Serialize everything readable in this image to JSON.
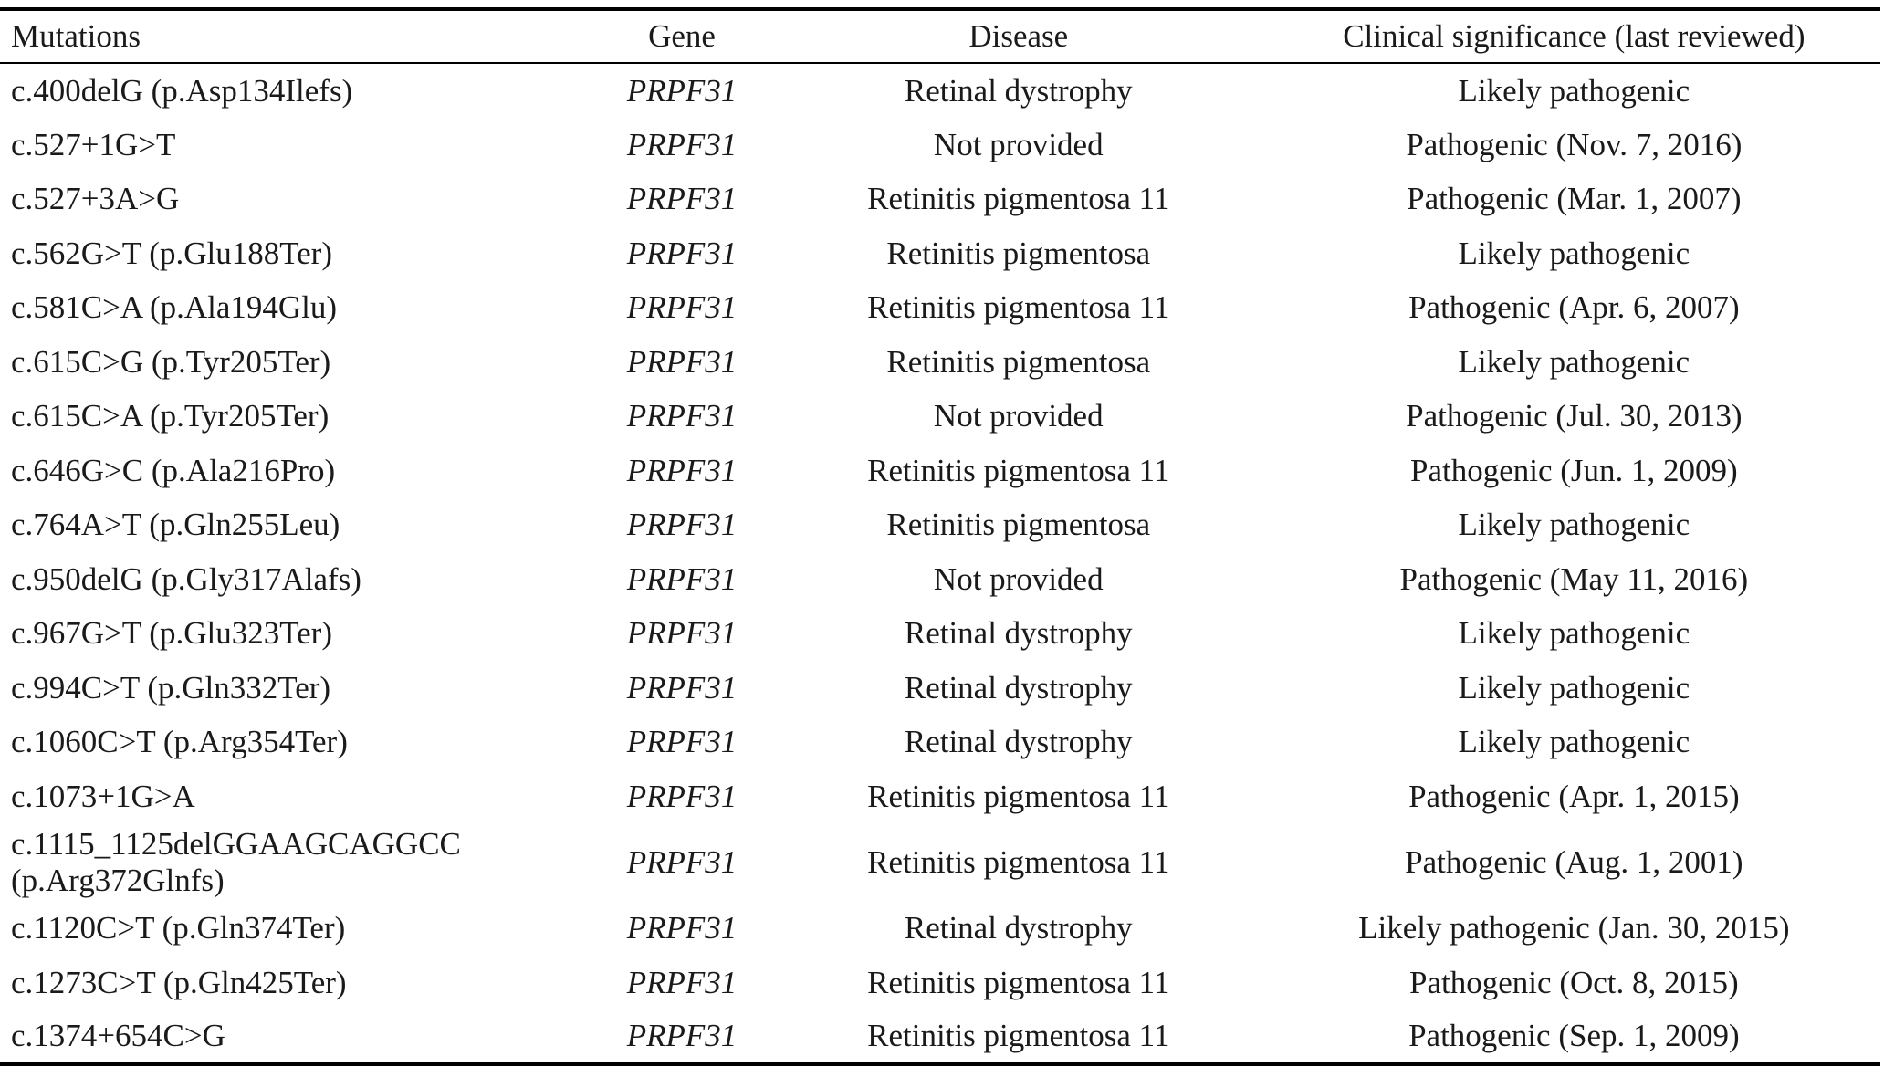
{
  "table": {
    "headers": {
      "mutations": "Mutations",
      "gene": "Gene",
      "disease": "Disease",
      "significance": "Clinical significance (last reviewed)"
    },
    "rows": [
      {
        "mutation": "c.400delG (p.Asp134Ilefs)",
        "gene": "PRPF31",
        "disease": "Retinal dystrophy",
        "significance": "Likely pathogenic"
      },
      {
        "mutation": "c.527+1G>T",
        "gene": "PRPF31",
        "disease": "Not provided",
        "significance": "Pathogenic (Nov. 7, 2016)"
      },
      {
        "mutation": "c.527+3A>G",
        "gene": "PRPF31",
        "disease": "Retinitis pigmentosa 11",
        "significance": "Pathogenic (Mar. 1, 2007)"
      },
      {
        "mutation": "c.562G>T (p.Glu188Ter)",
        "gene": "PRPF31",
        "disease": "Retinitis pigmentosa",
        "significance": "Likely pathogenic"
      },
      {
        "mutation": "c.581C>A (p.Ala194Glu)",
        "gene": "PRPF31",
        "disease": "Retinitis pigmentosa 11",
        "significance": "Pathogenic (Apr. 6, 2007)"
      },
      {
        "mutation": "c.615C>G (p.Tyr205Ter)",
        "gene": "PRPF31",
        "disease": "Retinitis pigmentosa",
        "significance": "Likely pathogenic"
      },
      {
        "mutation": "c.615C>A (p.Tyr205Ter)",
        "gene": "PRPF31",
        "disease": "Not provided",
        "significance": "Pathogenic (Jul. 30, 2013)"
      },
      {
        "mutation": "c.646G>C (p.Ala216Pro)",
        "gene": "PRPF31",
        "disease": "Retinitis pigmentosa 11",
        "significance": "Pathogenic (Jun. 1, 2009)"
      },
      {
        "mutation": "c.764A>T (p.Gln255Leu)",
        "gene": "PRPF31",
        "disease": "Retinitis pigmentosa",
        "significance": "Likely pathogenic"
      },
      {
        "mutation": "c.950delG (p.Gly317Alafs)",
        "gene": "PRPF31",
        "disease": "Not provided",
        "significance": "Pathogenic (May 11, 2016)"
      },
      {
        "mutation": "c.967G>T (p.Glu323Ter)",
        "gene": "PRPF31",
        "disease": "Retinal dystrophy",
        "significance": "Likely pathogenic"
      },
      {
        "mutation": "c.994C>T (p.Gln332Ter)",
        "gene": "PRPF31",
        "disease": "Retinal dystrophy",
        "significance": "Likely pathogenic"
      },
      {
        "mutation": "c.1060C>T (p.Arg354Ter)",
        "gene": "PRPF31",
        "disease": "Retinal dystrophy",
        "significance": "Likely pathogenic"
      },
      {
        "mutation": "c.1073+1G>A",
        "gene": "PRPF31",
        "disease": "Retinitis pigmentosa 11",
        "significance": "Pathogenic (Apr. 1, 2015)"
      },
      {
        "mutation": "c.1115_1125delGGAAGCAGGCC",
        "mutation_line2": "(p.Arg372Glnfs)",
        "gene": "PRPF31",
        "disease": "Retinitis pigmentosa 11",
        "significance": "Pathogenic (Aug. 1, 2001)"
      },
      {
        "mutation": "c.1120C>T (p.Gln374Ter)",
        "gene": "PRPF31",
        "disease": "Retinal dystrophy",
        "significance": "Likely pathogenic (Jan. 30, 2015)"
      },
      {
        "mutation": "c.1273C>T (p.Gln425Ter)",
        "gene": "PRPF31",
        "disease": "Retinitis pigmentosa 11",
        "significance": "Pathogenic (Oct. 8, 2015)"
      },
      {
        "mutation": "c.1374+654C>G",
        "gene": "PRPF31",
        "disease": "Retinitis pigmentosa 11",
        "significance": "Pathogenic (Sep. 1, 2009)"
      }
    ]
  }
}
